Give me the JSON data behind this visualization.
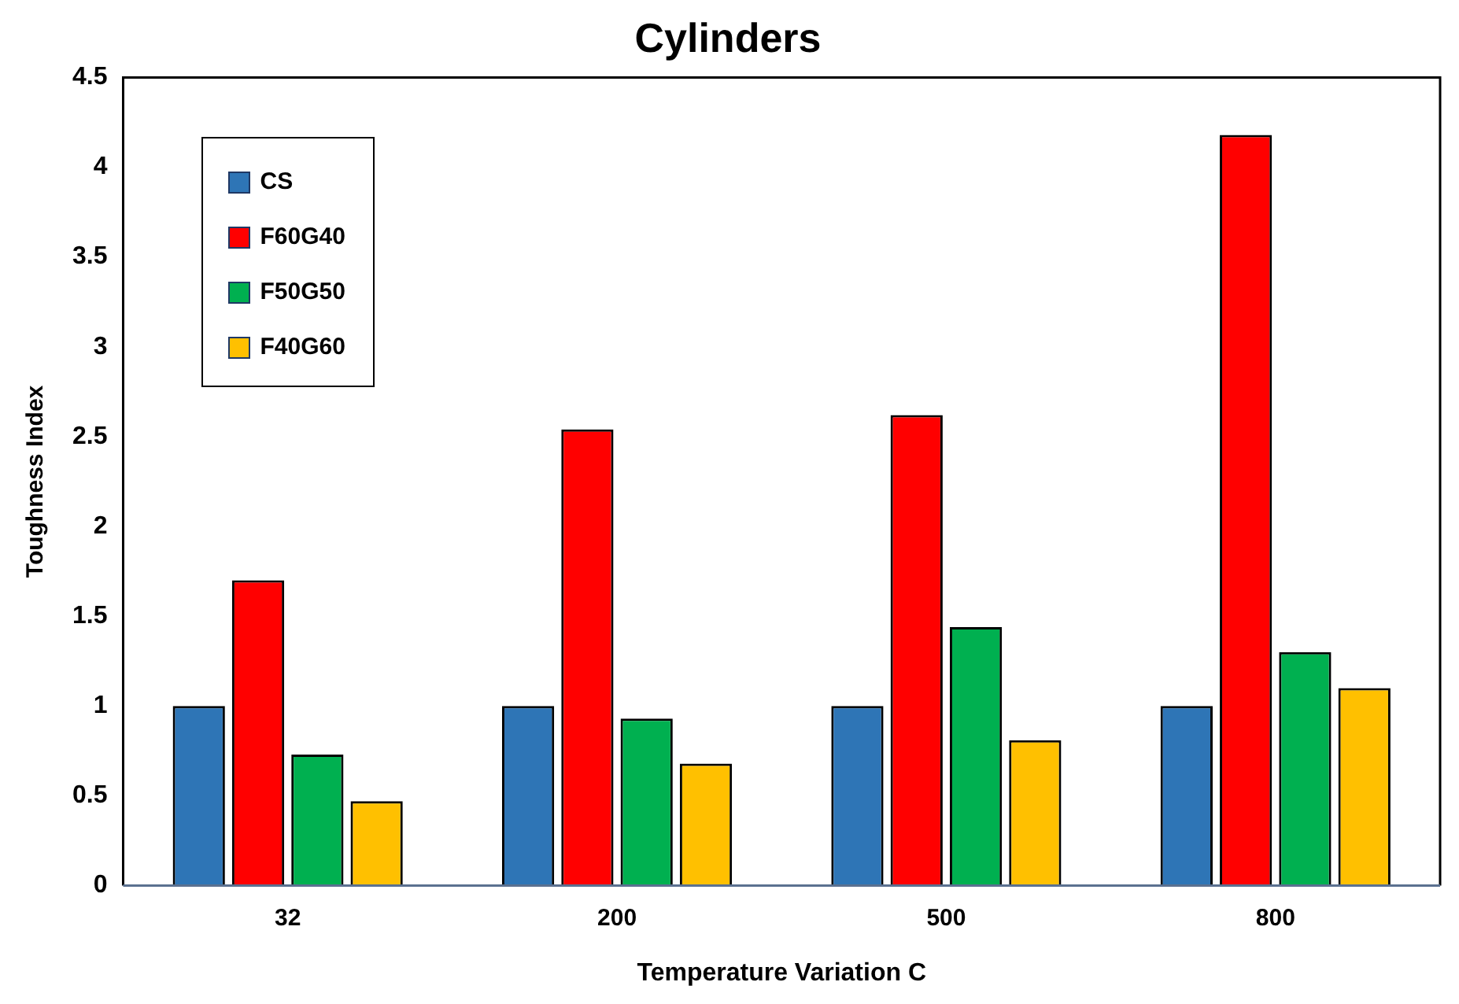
{
  "chart_data": {
    "type": "bar",
    "title": "Cylinders",
    "xlabel": "Temperature Variation C",
    "ylabel": "Toughness Index",
    "categories": [
      "32",
      "200",
      "500",
      "800"
    ],
    "series": [
      {
        "name": "CS",
        "color": "#2e75b6",
        "values": [
          1,
          1,
          1,
          1
        ]
      },
      {
        "name": "F60G40",
        "color": "#ff0000",
        "values": [
          1.7,
          2.54,
          2.62,
          4.18
        ]
      },
      {
        "name": "F50G50",
        "color": "#00b050",
        "values": [
          0.73,
          0.93,
          1.44,
          1.3
        ]
      },
      {
        "name": "F40G60",
        "color": "#ffc000",
        "values": [
          0.47,
          0.68,
          0.81,
          1.1
        ]
      }
    ],
    "ylim": [
      0,
      4.5
    ],
    "yticks": [
      0,
      0.5,
      1,
      1.5,
      2,
      2.5,
      3,
      3.5,
      4,
      4.5
    ],
    "grid": false,
    "legend": "top left"
  }
}
